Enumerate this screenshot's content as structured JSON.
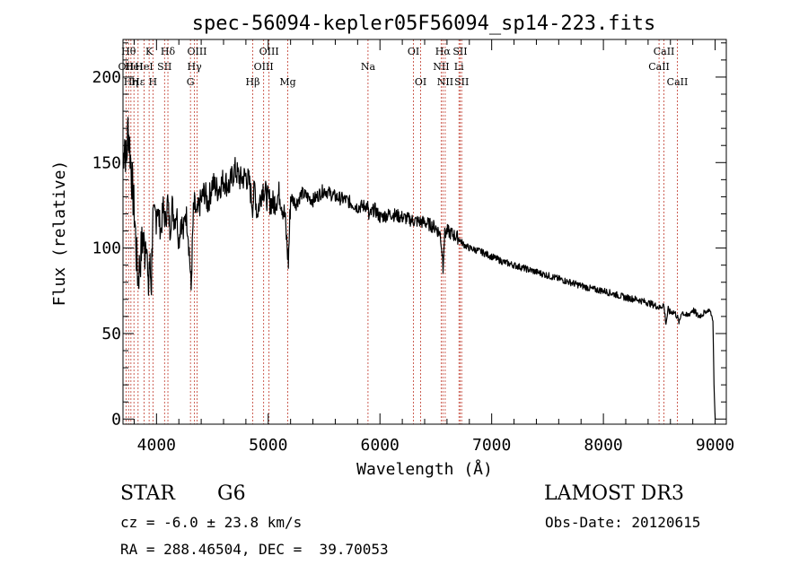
{
  "chart_data": {
    "type": "line",
    "title": "spec-56094-kepler05F56094_sp14-223.fits",
    "xlabel": "Wavelength (Å)",
    "ylabel": "Flux (relative)",
    "xlim": [
      3700,
      9100
    ],
    "ylim": [
      -3,
      222
    ],
    "xticks": [
      4000,
      5000,
      6000,
      7000,
      8000,
      9000
    ],
    "yticks": [
      0,
      50,
      100,
      150,
      200
    ],
    "series": [
      {
        "name": "flux",
        "x": [
          3700,
          3715,
          3730,
          3745,
          3760,
          3775,
          3790,
          3805,
          3820,
          3835,
          3850,
          3865,
          3880,
          3895,
          3910,
          3925,
          3935,
          3945,
          3955,
          3965,
          3975,
          3990,
          4005,
          4020,
          4040,
          4060,
          4080,
          4100,
          4120,
          4140,
          4160,
          4180,
          4200,
          4220,
          4240,
          4260,
          4280,
          4300,
          4310,
          4320,
          4330,
          4340,
          4360,
          4380,
          4400,
          4430,
          4460,
          4500,
          4550,
          4600,
          4650,
          4700,
          4750,
          4800,
          4830,
          4860,
          4880,
          4900,
          4950,
          5000,
          5050,
          5100,
          5150,
          5170,
          5180,
          5190,
          5200,
          5250,
          5300,
          5400,
          5500,
          5600,
          5700,
          5800,
          5890,
          5900,
          5950,
          6000,
          6100,
          6200,
          6300,
          6400,
          6500,
          6540,
          6560,
          6565,
          6570,
          6580,
          6600,
          6650,
          6700,
          6750,
          6800,
          6900,
          7000,
          7100,
          7200,
          7300,
          7400,
          7500,
          7600,
          7700,
          7800,
          7900,
          8000,
          8100,
          8200,
          8300,
          8400,
          8480,
          8500,
          8520,
          8540,
          8560,
          8580,
          8600,
          8620,
          8640,
          8660,
          8680,
          8700,
          8750,
          8800,
          8850,
          8900,
          8950,
          8960,
          8980,
          8990,
          9000
        ],
        "y": [
          150,
          165,
          148,
          172,
          160,
          145,
          130,
          118,
          96,
          82,
          90,
          100,
          106,
          98,
          112,
          70,
          92,
          85,
          80,
          118,
          112,
          118,
          125,
          118,
          110,
          124,
          115,
          128,
          110,
          125,
          116,
          122,
          104,
          118,
          108,
          122,
          112,
          90,
          75,
          100,
          120,
          125,
          118,
          124,
          128,
          133,
          126,
          138,
          134,
          140,
          136,
          146,
          140,
          142,
          138,
          125,
          136,
          120,
          136,
          128,
          126,
          132,
          118,
          100,
          92,
          110,
          130,
          126,
          132,
          128,
          134,
          130,
          128,
          124,
          125,
          118,
          123,
          118,
          120,
          118,
          116,
          115,
          112,
          108,
          95,
          88,
          100,
          108,
          110,
          108,
          106,
          102,
          100,
          98,
          95,
          92,
          90,
          88,
          86,
          84,
          82,
          80,
          78,
          76,
          75,
          73,
          71,
          70,
          68,
          66,
          65,
          66,
          67,
          56,
          64,
          62,
          63,
          62,
          60,
          56,
          63,
          60,
          64,
          60,
          62,
          64,
          62,
          58,
          20,
          0
        ]
      }
    ],
    "lines": [
      {
        "w": 3727,
        "label": "OII",
        "row": 2
      },
      {
        "w": 3750,
        "label": "Hθ",
        "row": 1
      },
      {
        "w": 3771,
        "label": "Hη",
        "row": 3
      },
      {
        "w": 3798,
        "label": "HeI",
        "row": 2
      },
      {
        "w": 3835,
        "label": "Hε",
        "row": 3
      },
      {
        "w": 3889,
        "label": "HeI",
        "row": 2
      },
      {
        "w": 3934,
        "label": "K",
        "row": 1
      },
      {
        "w": 3968,
        "label": "H",
        "row": 3
      },
      {
        "w": 4072,
        "label": "SII",
        "row": 2
      },
      {
        "w": 4102,
        "label": "Hδ",
        "row": 1
      },
      {
        "w": 4304,
        "label": "G",
        "row": 3
      },
      {
        "w": 4340,
        "label": "Hγ",
        "row": 2
      },
      {
        "w": 4363,
        "label": "OIII",
        "row": 1
      },
      {
        "w": 4861,
        "label": "Hβ",
        "row": 3
      },
      {
        "w": 4959,
        "label": "OIII",
        "row": 2
      },
      {
        "w": 5007,
        "label": "OIII",
        "row": 1
      },
      {
        "w": 5175,
        "label": "Mg",
        "row": 3
      },
      {
        "w": 5893,
        "label": "Na",
        "row": 2
      },
      {
        "w": 6300,
        "label": "OI",
        "row": 1
      },
      {
        "w": 6364,
        "label": "OI",
        "row": 3
      },
      {
        "w": 6548,
        "label": "NII",
        "row": 2
      },
      {
        "w": 6563,
        "label": "Hα",
        "row": 1
      },
      {
        "w": 6584,
        "label": "NII",
        "row": 3
      },
      {
        "w": 6707,
        "label": "Li",
        "row": 2
      },
      {
        "w": 6717,
        "label": "SII",
        "row": 1
      },
      {
        "w": 6731,
        "label": "SII",
        "row": 3
      },
      {
        "w": 8498,
        "label": "CaII",
        "row": 2
      },
      {
        "w": 8542,
        "label": "CaII",
        "row": 1
      },
      {
        "w": 8662,
        "label": "CaII",
        "row": 3
      }
    ]
  },
  "info": {
    "class": "STAR",
    "subclass": "G6",
    "survey": "LAMOST DR3",
    "cz": "cz = -6.0 ± 23.8 km/s",
    "obsdate": "Obs-Date: 20120615",
    "coords": "RA = 288.46504, DEC =  39.70053"
  },
  "colors": {
    "axis": "#000000",
    "line_marker": "#c0392b",
    "spectrum": "#000000"
  }
}
